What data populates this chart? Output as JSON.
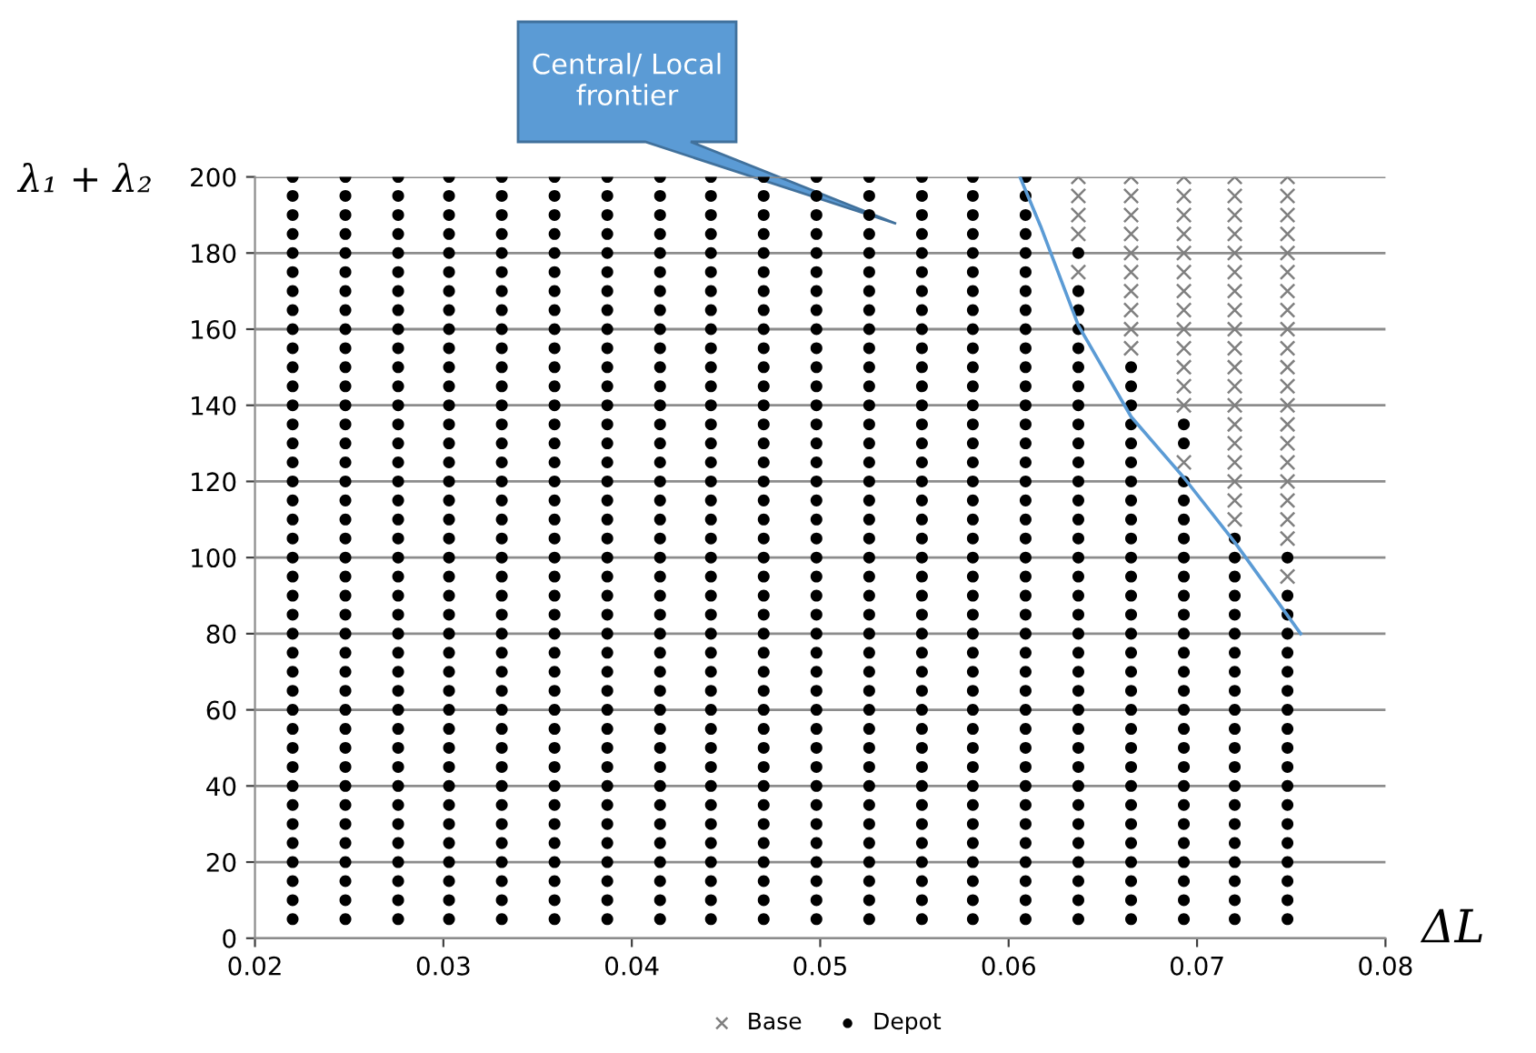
{
  "chart_data": {
    "type": "scatter",
    "xlabel": "ΔL",
    "ylabel": "λ₁ + λ₂",
    "xlim": [
      0.02,
      0.08
    ],
    "xticks": [
      0.02,
      0.03,
      0.04,
      0.05,
      0.06,
      0.07,
      0.08
    ],
    "ylim": [
      0,
      200
    ],
    "yticks": [
      0,
      20,
      40,
      60,
      80,
      100,
      120,
      140,
      160,
      180,
      200
    ],
    "grid": "y",
    "legend": "bottom",
    "annotations": [
      "Central/ Local\nfrontier"
    ],
    "series": [
      {
        "name": "Base",
        "marker": "cross",
        "color": "#7f7f7f",
        "x": [
          0.0637,
          0.0637,
          0.0637,
          0.0637,
          0.0637,
          0.0665,
          0.0665,
          0.0665,
          0.0665,
          0.0665,
          0.0665,
          0.0665,
          0.0665,
          0.0665,
          0.0665,
          0.0693,
          0.0693,
          0.0693,
          0.0693,
          0.0693,
          0.0693,
          0.0693,
          0.0693,
          0.0693,
          0.0693,
          0.0693,
          0.0693,
          0.0693,
          0.0693,
          0.072,
          0.072,
          0.072,
          0.072,
          0.072,
          0.072,
          0.072,
          0.072,
          0.072,
          0.072,
          0.072,
          0.072,
          0.072,
          0.072,
          0.072,
          0.072,
          0.072,
          0.072,
          0.072,
          0.0748,
          0.0748,
          0.0748,
          0.0748,
          0.0748,
          0.0748,
          0.0748,
          0.0748,
          0.0748,
          0.0748,
          0.0748,
          0.0748,
          0.0748,
          0.0748,
          0.0748,
          0.0748,
          0.0748,
          0.0748,
          0.0748,
          0.0748,
          0.0748
        ],
        "values": [
          175,
          185,
          190,
          195,
          200,
          155,
          160,
          165,
          170,
          175,
          180,
          185,
          190,
          195,
          200,
          125,
          140,
          145,
          150,
          155,
          160,
          165,
          170,
          175,
          180,
          185,
          190,
          195,
          200,
          110,
          115,
          120,
          125,
          130,
          135,
          140,
          145,
          150,
          155,
          160,
          165,
          170,
          175,
          180,
          185,
          190,
          195,
          200,
          95,
          105,
          110,
          115,
          120,
          125,
          130,
          135,
          140,
          145,
          150,
          155,
          160,
          165,
          170,
          175,
          180,
          185,
          190,
          195,
          200
        ]
      },
      {
        "name": "Depot",
        "marker": "circle",
        "color": "#000000",
        "x": [
          0.022,
          0.022,
          0.022,
          0.022,
          0.022,
          0.022,
          0.022,
          0.022,
          0.022,
          0.022,
          0.022,
          0.022,
          0.022,
          0.022,
          0.022,
          0.022,
          0.022,
          0.022,
          0.022,
          0.022,
          0.022,
          0.022,
          0.022,
          0.022,
          0.022,
          0.022,
          0.022,
          0.022,
          0.022,
          0.022,
          0.022,
          0.022,
          0.022,
          0.022,
          0.022,
          0.022,
          0.022,
          0.022,
          0.022,
          0.022,
          0.0248,
          0.0248,
          0.0248,
          0.0248,
          0.0248,
          0.0248,
          0.0248,
          0.0248,
          0.0248,
          0.0248,
          0.0248,
          0.0248,
          0.0248,
          0.0248,
          0.0248,
          0.0248,
          0.0248,
          0.0248,
          0.0248,
          0.0248,
          0.0248,
          0.0248,
          0.0248,
          0.0248,
          0.0248,
          0.0248,
          0.0248,
          0.0248,
          0.0248,
          0.0248,
          0.0248,
          0.0248,
          0.0248,
          0.0248,
          0.0248,
          0.0248,
          0.0248,
          0.0248,
          0.0248,
          0.0248,
          0.0276,
          0.0276,
          0.0276,
          0.0276,
          0.0276,
          0.0276,
          0.0276,
          0.0276,
          0.0276,
          0.0276,
          0.0276,
          0.0276,
          0.0276,
          0.0276,
          0.0276,
          0.0276,
          0.0276,
          0.0276,
          0.0276,
          0.0276,
          0.0276,
          0.0276,
          0.0276,
          0.0276,
          0.0276,
          0.0276,
          0.0276,
          0.0276,
          0.0276,
          0.0276,
          0.0276,
          0.0276,
          0.0276,
          0.0276,
          0.0276,
          0.0276,
          0.0276,
          0.0276,
          0.0276,
          0.0276,
          0.0303,
          0.0303,
          0.0303,
          0.0303,
          0.0303,
          0.0303,
          0.0303,
          0.0303,
          0.0303,
          0.0303,
          0.0303,
          0.0303,
          0.0303,
          0.0303,
          0.0303,
          0.0303,
          0.0303,
          0.0303,
          0.0303,
          0.0303,
          0.0303,
          0.0303,
          0.0303,
          0.0303,
          0.0303,
          0.0303,
          0.0303,
          0.0303,
          0.0303,
          0.0303,
          0.0303,
          0.0303,
          0.0303,
          0.0303,
          0.0303,
          0.0303,
          0.0303,
          0.0303,
          0.0303,
          0.0303,
          0.0331,
          0.0331,
          0.0331,
          0.0331,
          0.0331,
          0.0331,
          0.0331,
          0.0331,
          0.0331,
          0.0331,
          0.0331,
          0.0331,
          0.0331,
          0.0331,
          0.0331,
          0.0331,
          0.0331,
          0.0331,
          0.0331,
          0.0331,
          0.0331,
          0.0331,
          0.0331,
          0.0331,
          0.0331,
          0.0331,
          0.0331,
          0.0331,
          0.0331,
          0.0331,
          0.0331,
          0.0331,
          0.0331,
          0.0331,
          0.0331,
          0.0331,
          0.0331,
          0.0331,
          0.0331,
          0.0331,
          0.0359,
          0.0359,
          0.0359,
          0.0359,
          0.0359,
          0.0359,
          0.0359,
          0.0359,
          0.0359,
          0.0359,
          0.0359,
          0.0359,
          0.0359,
          0.0359,
          0.0359,
          0.0359,
          0.0359,
          0.0359,
          0.0359,
          0.0359,
          0.0359,
          0.0359,
          0.0359,
          0.0359,
          0.0359,
          0.0359,
          0.0359,
          0.0359,
          0.0359,
          0.0359,
          0.0359,
          0.0359,
          0.0359,
          0.0359,
          0.0359,
          0.0359,
          0.0359,
          0.0359,
          0.0359,
          0.0359,
          0.0387,
          0.0387,
          0.0387,
          0.0387,
          0.0387,
          0.0387,
          0.0387,
          0.0387,
          0.0387,
          0.0387,
          0.0387,
          0.0387,
          0.0387,
          0.0387,
          0.0387,
          0.0387,
          0.0387,
          0.0387,
          0.0387,
          0.0387,
          0.0387,
          0.0387,
          0.0387,
          0.0387,
          0.0387,
          0.0387,
          0.0387,
          0.0387,
          0.0387,
          0.0387,
          0.0387,
          0.0387,
          0.0387,
          0.0387,
          0.0387,
          0.0387,
          0.0387,
          0.0387,
          0.0387,
          0.0387,
          0.0415,
          0.0415,
          0.0415,
          0.0415,
          0.0415,
          0.0415,
          0.0415,
          0.0415,
          0.0415,
          0.0415,
          0.0415,
          0.0415,
          0.0415,
          0.0415,
          0.0415,
          0.0415,
          0.0415,
          0.0415,
          0.0415,
          0.0415,
          0.0415,
          0.0415,
          0.0415,
          0.0415,
          0.0415,
          0.0415,
          0.0415,
          0.0415,
          0.0415,
          0.0415,
          0.0415,
          0.0415,
          0.0415,
          0.0415,
          0.0415,
          0.0415,
          0.0415,
          0.0415,
          0.0415,
          0.0415,
          0.0442,
          0.0442,
          0.0442,
          0.0442,
          0.0442,
          0.0442,
          0.0442,
          0.0442,
          0.0442,
          0.0442,
          0.0442,
          0.0442,
          0.0442,
          0.0442,
          0.0442,
          0.0442,
          0.0442,
          0.0442,
          0.0442,
          0.0442,
          0.0442,
          0.0442,
          0.0442,
          0.0442,
          0.0442,
          0.0442,
          0.0442,
          0.0442,
          0.0442,
          0.0442,
          0.0442,
          0.0442,
          0.0442,
          0.0442,
          0.0442,
          0.0442,
          0.0442,
          0.0442,
          0.0442,
          0.0442,
          0.047,
          0.047,
          0.047,
          0.047,
          0.047,
          0.047,
          0.047,
          0.047,
          0.047,
          0.047,
          0.047,
          0.047,
          0.047,
          0.047,
          0.047,
          0.047,
          0.047,
          0.047,
          0.047,
          0.047,
          0.047,
          0.047,
          0.047,
          0.047,
          0.047,
          0.047,
          0.047,
          0.047,
          0.047,
          0.047,
          0.047,
          0.047,
          0.047,
          0.047,
          0.047,
          0.047,
          0.047,
          0.047,
          0.047,
          0.047,
          0.0498,
          0.0498,
          0.0498,
          0.0498,
          0.0498,
          0.0498,
          0.0498,
          0.0498,
          0.0498,
          0.0498,
          0.0498,
          0.0498,
          0.0498,
          0.0498,
          0.0498,
          0.0498,
          0.0498,
          0.0498,
          0.0498,
          0.0498,
          0.0498,
          0.0498,
          0.0498,
          0.0498,
          0.0498,
          0.0498,
          0.0498,
          0.0498,
          0.0498,
          0.0498,
          0.0498,
          0.0498,
          0.0498,
          0.0498,
          0.0498,
          0.0498,
          0.0498,
          0.0498,
          0.0498,
          0.0498,
          0.0526,
          0.0526,
          0.0526,
          0.0526,
          0.0526,
          0.0526,
          0.0526,
          0.0526,
          0.0526,
          0.0526,
          0.0526,
          0.0526,
          0.0526,
          0.0526,
          0.0526,
          0.0526,
          0.0526,
          0.0526,
          0.0526,
          0.0526,
          0.0526,
          0.0526,
          0.0526,
          0.0526,
          0.0526,
          0.0526,
          0.0526,
          0.0526,
          0.0526,
          0.0526,
          0.0526,
          0.0526,
          0.0526,
          0.0526,
          0.0526,
          0.0526,
          0.0526,
          0.0526,
          0.0526,
          0.0526,
          0.0554,
          0.0554,
          0.0554,
          0.0554,
          0.0554,
          0.0554,
          0.0554,
          0.0554,
          0.0554,
          0.0554,
          0.0554,
          0.0554,
          0.0554,
          0.0554,
          0.0554,
          0.0554,
          0.0554,
          0.0554,
          0.0554,
          0.0554,
          0.0554,
          0.0554,
          0.0554,
          0.0554,
          0.0554,
          0.0554,
          0.0554,
          0.0554,
          0.0554,
          0.0554,
          0.0554,
          0.0554,
          0.0554,
          0.0554,
          0.0554,
          0.0554,
          0.0554,
          0.0554,
          0.0554,
          0.0554,
          0.0581,
          0.0581,
          0.0581,
          0.0581,
          0.0581,
          0.0581,
          0.0581,
          0.0581,
          0.0581,
          0.0581,
          0.0581,
          0.0581,
          0.0581,
          0.0581,
          0.0581,
          0.0581,
          0.0581,
          0.0581,
          0.0581,
          0.0581,
          0.0581,
          0.0581,
          0.0581,
          0.0581,
          0.0581,
          0.0581,
          0.0581,
          0.0581,
          0.0581,
          0.0581,
          0.0581,
          0.0581,
          0.0581,
          0.0581,
          0.0581,
          0.0581,
          0.0581,
          0.0581,
          0.0581,
          0.0581,
          0.0609,
          0.0609,
          0.0609,
          0.0609,
          0.0609,
          0.0609,
          0.0609,
          0.0609,
          0.0609,
          0.0609,
          0.0609,
          0.0609,
          0.0609,
          0.0609,
          0.0609,
          0.0609,
          0.0609,
          0.0609,
          0.0609,
          0.0609,
          0.0609,
          0.0609,
          0.0609,
          0.0609,
          0.0609,
          0.0609,
          0.0609,
          0.0609,
          0.0609,
          0.0609,
          0.0609,
          0.0609,
          0.0609,
          0.0609,
          0.0609,
          0.0609,
          0.0609,
          0.0609,
          0.0609,
          0.0609,
          0.0637,
          0.0637,
          0.0637,
          0.0637,
          0.0637,
          0.0637,
          0.0637,
          0.0637,
          0.0637,
          0.0637,
          0.0637,
          0.0637,
          0.0637,
          0.0637,
          0.0637,
          0.0637,
          0.0637,
          0.0637,
          0.0637,
          0.0637,
          0.0637,
          0.0637,
          0.0637,
          0.0637,
          0.0637,
          0.0637,
          0.0637,
          0.0637,
          0.0637,
          0.0637,
          0.0637,
          0.0637,
          0.0637,
          0.0637,
          0.0637,
          0.0665,
          0.0665,
          0.0665,
          0.0665,
          0.0665,
          0.0665,
          0.0665,
          0.0665,
          0.0665,
          0.0665,
          0.0665,
          0.0665,
          0.0665,
          0.0665,
          0.0665,
          0.0665,
          0.0665,
          0.0665,
          0.0665,
          0.0665,
          0.0665,
          0.0665,
          0.0665,
          0.0665,
          0.0665,
          0.0665,
          0.0665,
          0.0665,
          0.0665,
          0.0665,
          0.0693,
          0.0693,
          0.0693,
          0.0693,
          0.0693,
          0.0693,
          0.0693,
          0.0693,
          0.0693,
          0.0693,
          0.0693,
          0.0693,
          0.0693,
          0.0693,
          0.0693,
          0.0693,
          0.0693,
          0.0693,
          0.0693,
          0.0693,
          0.0693,
          0.0693,
          0.0693,
          0.0693,
          0.0693,
          0.0693,
          0.072,
          0.072,
          0.072,
          0.072,
          0.072,
          0.072,
          0.072,
          0.072,
          0.072,
          0.072,
          0.072,
          0.072,
          0.072,
          0.072,
          0.072,
          0.072,
          0.072,
          0.072,
          0.072,
          0.072,
          0.072,
          0.0748,
          0.0748,
          0.0748,
          0.0748,
          0.0748,
          0.0748,
          0.0748,
          0.0748,
          0.0748,
          0.0748,
          0.0748,
          0.0748,
          0.0748,
          0.0748,
          0.0748,
          0.0748,
          0.0748,
          0.0748,
          0.0748
        ],
        "values": [
          5,
          10,
          15,
          20,
          25,
          30,
          35,
          40,
          45,
          50,
          55,
          60,
          65,
          70,
          75,
          80,
          85,
          90,
          95,
          100,
          105,
          110,
          115,
          120,
          125,
          130,
          135,
          140,
          145,
          150,
          155,
          160,
          165,
          170,
          175,
          180,
          185,
          190,
          195,
          200,
          5,
          10,
          15,
          20,
          25,
          30,
          35,
          40,
          45,
          50,
          55,
          60,
          65,
          70,
          75,
          80,
          85,
          90,
          95,
          100,
          105,
          110,
          115,
          120,
          125,
          130,
          135,
          140,
          145,
          150,
          155,
          160,
          165,
          170,
          175,
          180,
          185,
          190,
          195,
          200,
          5,
          10,
          15,
          20,
          25,
          30,
          35,
          40,
          45,
          50,
          55,
          60,
          65,
          70,
          75,
          80,
          85,
          90,
          95,
          100,
          105,
          110,
          115,
          120,
          125,
          130,
          135,
          140,
          145,
          150,
          155,
          160,
          165,
          170,
          175,
          180,
          185,
          190,
          195,
          200,
          5,
          10,
          15,
          20,
          25,
          30,
          35,
          40,
          45,
          50,
          55,
          60,
          65,
          70,
          75,
          80,
          85,
          90,
          95,
          100,
          105,
          110,
          115,
          120,
          125,
          130,
          135,
          140,
          145,
          150,
          155,
          160,
          165,
          170,
          175,
          180,
          185,
          190,
          195,
          200,
          5,
          10,
          15,
          20,
          25,
          30,
          35,
          40,
          45,
          50,
          55,
          60,
          65,
          70,
          75,
          80,
          85,
          90,
          95,
          100,
          105,
          110,
          115,
          120,
          125,
          130,
          135,
          140,
          145,
          150,
          155,
          160,
          165,
          170,
          175,
          180,
          185,
          190,
          195,
          200,
          5,
          10,
          15,
          20,
          25,
          30,
          35,
          40,
          45,
          50,
          55,
          60,
          65,
          70,
          75,
          80,
          85,
          90,
          95,
          100,
          105,
          110,
          115,
          120,
          125,
          130,
          135,
          140,
          145,
          150,
          155,
          160,
          165,
          170,
          175,
          180,
          185,
          190,
          195,
          200,
          5,
          10,
          15,
          20,
          25,
          30,
          35,
          40,
          45,
          50,
          55,
          60,
          65,
          70,
          75,
          80,
          85,
          90,
          95,
          100,
          105,
          110,
          115,
          120,
          125,
          130,
          135,
          140,
          145,
          150,
          155,
          160,
          165,
          170,
          175,
          180,
          185,
          190,
          195,
          200,
          5,
          10,
          15,
          20,
          25,
          30,
          35,
          40,
          45,
          50,
          55,
          60,
          65,
          70,
          75,
          80,
          85,
          90,
          95,
          100,
          105,
          110,
          115,
          120,
          125,
          130,
          135,
          140,
          145,
          150,
          155,
          160,
          165,
          170,
          175,
          180,
          185,
          190,
          195,
          200,
          5,
          10,
          15,
          20,
          25,
          30,
          35,
          40,
          45,
          50,
          55,
          60,
          65,
          70,
          75,
          80,
          85,
          90,
          95,
          100,
          105,
          110,
          115,
          120,
          125,
          130,
          135,
          140,
          145,
          150,
          155,
          160,
          165,
          170,
          175,
          180,
          185,
          190,
          195,
          200,
          5,
          10,
          15,
          20,
          25,
          30,
          35,
          40,
          45,
          50,
          55,
          60,
          65,
          70,
          75,
          80,
          85,
          90,
          95,
          100,
          105,
          110,
          115,
          120,
          125,
          130,
          135,
          140,
          145,
          150,
          155,
          160,
          165,
          170,
          175,
          180,
          185,
          190,
          195,
          200,
          5,
          10,
          15,
          20,
          25,
          30,
          35,
          40,
          45,
          50,
          55,
          60,
          65,
          70,
          75,
          80,
          85,
          90,
          95,
          100,
          105,
          110,
          115,
          120,
          125,
          130,
          135,
          140,
          145,
          150,
          155,
          160,
          165,
          170,
          175,
          180,
          185,
          190,
          195,
          200,
          5,
          10,
          15,
          20,
          25,
          30,
          35,
          40,
          45,
          50,
          55,
          60,
          65,
          70,
          75,
          80,
          85,
          90,
          95,
          100,
          105,
          110,
          115,
          120,
          125,
          130,
          135,
          140,
          145,
          150,
          155,
          160,
          165,
          170,
          175,
          180,
          185,
          190,
          195,
          200,
          5,
          10,
          15,
          20,
          25,
          30,
          35,
          40,
          45,
          50,
          55,
          60,
          65,
          70,
          75,
          80,
          85,
          90,
          95,
          100,
          105,
          110,
          115,
          120,
          125,
          130,
          135,
          140,
          145,
          150,
          155,
          160,
          165,
          170,
          175,
          180,
          185,
          190,
          195,
          200,
          5,
          10,
          15,
          20,
          25,
          30,
          35,
          40,
          45,
          50,
          55,
          60,
          65,
          70,
          75,
          80,
          85,
          90,
          95,
          100,
          105,
          110,
          115,
          120,
          125,
          130,
          135,
          140,
          145,
          150,
          155,
          160,
          165,
          170,
          175,
          180,
          185,
          190,
          195,
          200,
          5,
          10,
          15,
          20,
          25,
          30,
          35,
          40,
          45,
          50,
          55,
          60,
          65,
          70,
          75,
          80,
          85,
          90,
          95,
          100,
          105,
          110,
          115,
          120,
          125,
          130,
          135,
          140,
          145,
          150,
          155,
          160,
          165,
          170,
          175,
          180,
          185,
          190,
          195,
          200,
          5,
          10,
          15,
          20,
          25,
          30,
          35,
          40,
          45,
          50,
          55,
          60,
          65,
          70,
          75,
          80,
          85,
          90,
          95,
          100,
          105,
          110,
          115,
          120,
          125,
          130,
          135,
          140,
          145,
          150,
          155,
          160,
          165,
          170,
          180,
          5,
          10,
          15,
          20,
          25,
          30,
          35,
          40,
          45,
          50,
          55,
          60,
          65,
          70,
          75,
          80,
          85,
          90,
          95,
          100,
          105,
          110,
          115,
          120,
          125,
          130,
          135,
          140,
          145,
          150,
          5,
          10,
          15,
          20,
          25,
          30,
          35,
          40,
          45,
          50,
          55,
          60,
          65,
          70,
          75,
          80,
          85,
          90,
          95,
          100,
          105,
          110,
          115,
          120,
          130,
          135,
          5,
          10,
          15,
          20,
          25,
          30,
          35,
          40,
          45,
          50,
          55,
          60,
          65,
          70,
          75,
          80,
          85,
          90,
          95,
          100,
          105,
          5,
          10,
          15,
          20,
          25,
          30,
          35,
          40,
          45,
          50,
          55,
          60,
          65,
          70,
          75,
          80,
          85,
          90,
          100
        ]
      },
      {
        "type": "line",
        "marker": "none",
        "color": "#5b9bd5",
        "x": [
          0.0606,
          0.0617,
          0.0637,
          0.0665,
          0.0693,
          0.072,
          0.0755
        ],
        "values": [
          200,
          187,
          161,
          137,
          121,
          104,
          80
        ]
      }
    ]
  }
}
